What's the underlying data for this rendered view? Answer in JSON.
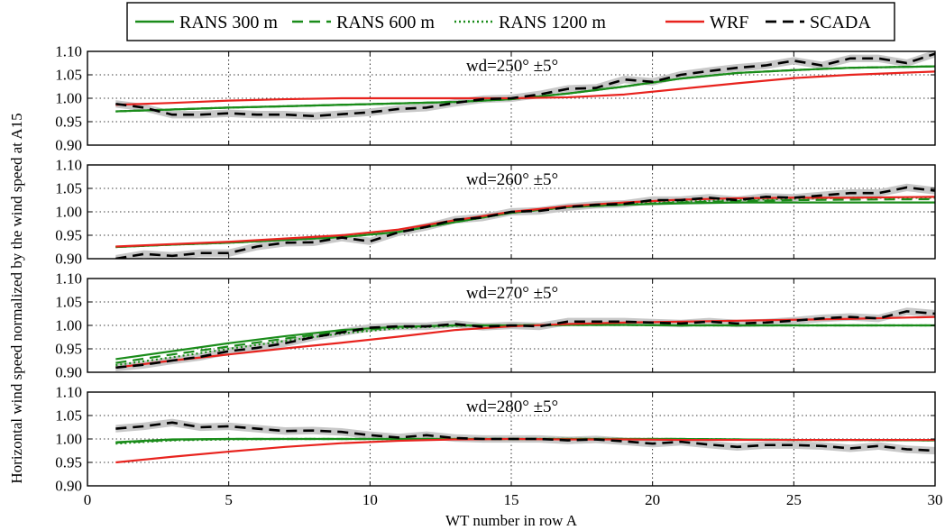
{
  "chart_data": {
    "type": "line",
    "xlabel": "WT number in row A",
    "ylabel": "Horizontal wind speed normalized by the wind speed at A15",
    "xlim": [
      0,
      30
    ],
    "ylim": [
      0.9,
      1.1
    ],
    "xticks": [
      "0",
      "5",
      "10",
      "15",
      "20",
      "25",
      "30"
    ],
    "yticks": [
      "0.90",
      "0.95",
      "1.00",
      "1.05",
      "1.10"
    ],
    "grid": true,
    "legend": {
      "placement": "top-center"
    },
    "series_styles": [
      {
        "name": "RANS 300 m",
        "color": "#1a8c1a",
        "dash": "solid"
      },
      {
        "name": "RANS 600 m",
        "color": "#1a8c1a",
        "dash": "dashed"
      },
      {
        "name": "RANS 1200 m",
        "color": "#1a8c1a",
        "dash": "dotted"
      },
      {
        "name": "WRF",
        "color": "#e8231e",
        "dash": "solid"
      },
      {
        "name": "SCADA",
        "color": "#000000",
        "dash": "dashed"
      }
    ],
    "band_color": "#c8c8c8",
    "panels": [
      {
        "title": "wd=250° ±5°",
        "series": [
          {
            "name": "RANS 300 m",
            "x": [
              1,
              3,
              5,
              7,
              9,
              11,
              13,
              15,
              17,
              19,
              21,
              23,
              25,
              27,
              30
            ],
            "values": [
              0.972,
              0.976,
              0.98,
              0.983,
              0.986,
              0.989,
              0.992,
              0.998,
              1.01,
              1.025,
              1.042,
              1.054,
              1.06,
              1.065,
              1.068
            ]
          },
          {
            "name": "RANS 600 m",
            "x": [
              1,
              3,
              5,
              7,
              9,
              11,
              13,
              15,
              17,
              19,
              21,
              23,
              25,
              27,
              30
            ],
            "values": [
              0.972,
              0.976,
              0.98,
              0.983,
              0.986,
              0.989,
              0.992,
              0.998,
              1.01,
              1.025,
              1.042,
              1.054,
              1.06,
              1.065,
              1.068
            ]
          },
          {
            "name": "RANS 1200 m",
            "x": [
              1,
              3,
              5,
              7,
              9,
              11,
              13,
              15,
              17,
              19,
              21,
              23,
              25,
              27,
              30
            ],
            "values": [
              0.972,
              0.976,
              0.98,
              0.983,
              0.986,
              0.989,
              0.992,
              0.998,
              1.01,
              1.025,
              1.042,
              1.054,
              1.06,
              1.065,
              1.068
            ]
          },
          {
            "name": "WRF",
            "x": [
              1,
              3,
              5,
              7,
              9,
              11,
              13,
              15,
              17,
              19,
              21,
              23,
              25,
              27,
              30
            ],
            "values": [
              0.986,
              0.99,
              0.995,
              0.998,
              1.0,
              1.0,
              1.0,
              1.0,
              1.002,
              1.008,
              1.02,
              1.032,
              1.043,
              1.05,
              1.057
            ]
          },
          {
            "name": "SCADA",
            "x": [
              1,
              2,
              3,
              4,
              5,
              6,
              7,
              8,
              9,
              10,
              11,
              12,
              13,
              14,
              15,
              16,
              17,
              18,
              19,
              20,
              21,
              22,
              23,
              24,
              25,
              26,
              27,
              28,
              29,
              30
            ],
            "values": [
              0.988,
              0.98,
              0.965,
              0.965,
              0.968,
              0.965,
              0.965,
              0.962,
              0.966,
              0.97,
              0.977,
              0.98,
              0.99,
              0.998,
              1.0,
              1.008,
              1.02,
              1.022,
              1.04,
              1.035,
              1.05,
              1.058,
              1.065,
              1.07,
              1.08,
              1.07,
              1.085,
              1.085,
              1.075,
              1.095
            ]
          }
        ]
      },
      {
        "title": "wd=260° ±5°",
        "series": [
          {
            "name": "RANS 300 m",
            "x": [
              1,
              3,
              5,
              7,
              9,
              11,
              13,
              15,
              17,
              19,
              21,
              23,
              25,
              27,
              30
            ],
            "values": [
              0.925,
              0.93,
              0.934,
              0.94,
              0.946,
              0.957,
              0.978,
              0.998,
              1.01,
              1.015,
              1.018,
              1.02,
              1.02,
              1.02,
              1.02
            ]
          },
          {
            "name": "RANS 600 m",
            "x": [
              1,
              3,
              5,
              7,
              9,
              11,
              13,
              15,
              17,
              19,
              21,
              23,
              25,
              27,
              30
            ],
            "values": [
              0.925,
              0.93,
              0.934,
              0.94,
              0.946,
              0.957,
              0.978,
              0.998,
              1.01,
              1.015,
              1.02,
              1.023,
              1.025,
              1.026,
              1.027
            ]
          },
          {
            "name": "RANS 1200 m",
            "x": [
              1,
              3,
              5,
              7,
              9,
              11,
              13,
              15,
              17,
              19,
              21,
              23,
              25,
              27,
              30
            ],
            "values": [
              0.925,
              0.93,
              0.934,
              0.94,
              0.946,
              0.957,
              0.978,
              0.998,
              1.01,
              1.017,
              1.022,
              1.025,
              1.028,
              1.03,
              1.03
            ]
          },
          {
            "name": "WRF",
            "x": [
              1,
              3,
              5,
              7,
              9,
              11,
              13,
              15,
              17,
              19,
              21,
              23,
              25,
              27,
              30
            ],
            "values": [
              0.926,
              0.931,
              0.936,
              0.943,
              0.95,
              0.962,
              0.982,
              1.0,
              1.012,
              1.02,
              1.026,
              1.029,
              1.03,
              1.03,
              1.032
            ]
          },
          {
            "name": "SCADA",
            "x": [
              1,
              2,
              3,
              4,
              5,
              6,
              7,
              8,
              9,
              10,
              11,
              12,
              13,
              14,
              15,
              16,
              17,
              18,
              19,
              20,
              21,
              22,
              23,
              24,
              25,
              26,
              27,
              28,
              29,
              30
            ],
            "values": [
              0.9,
              0.91,
              0.906,
              0.912,
              0.912,
              0.926,
              0.934,
              0.935,
              0.945,
              0.937,
              0.956,
              0.968,
              0.983,
              0.988,
              1.0,
              1.002,
              1.01,
              1.015,
              1.017,
              1.025,
              1.025,
              1.03,
              1.025,
              1.032,
              1.03,
              1.035,
              1.04,
              1.04,
              1.052,
              1.045
            ]
          }
        ]
      },
      {
        "title": "wd=270° ±5°",
        "series": [
          {
            "name": "RANS 300 m",
            "x": [
              1,
              3,
              5,
              7,
              9,
              11,
              13,
              15,
              17,
              19,
              21,
              23,
              25,
              27,
              30
            ],
            "values": [
              0.928,
              0.945,
              0.962,
              0.977,
              0.99,
              0.997,
              1.0,
              1.0,
              1.001,
              1.001,
              1.0,
              1.0,
              1.0,
              1.0,
              1.0
            ]
          },
          {
            "name": "RANS 600 m",
            "x": [
              1,
              3,
              5,
              7,
              9,
              11,
              13,
              15,
              17,
              19,
              21,
              23,
              25,
              27,
              30
            ],
            "values": [
              0.92,
              0.938,
              0.955,
              0.972,
              0.987,
              0.996,
              1.0,
              1.0,
              1.001,
              1.001,
              1.0,
              1.0,
              1.0,
              1.0,
              1.0
            ]
          },
          {
            "name": "RANS 1200 m",
            "x": [
              1,
              3,
              5,
              7,
              9,
              11,
              13,
              15,
              17,
              19,
              21,
              23,
              25,
              27,
              30
            ],
            "values": [
              0.915,
              0.932,
              0.95,
              0.967,
              0.983,
              0.994,
              0.999,
              1.0,
              1.001,
              1.001,
              1.0,
              1.0,
              1.0,
              1.0,
              1.0
            ]
          },
          {
            "name": "WRF",
            "x": [
              1,
              3,
              5,
              7,
              9,
              11,
              13,
              15,
              17,
              19,
              21,
              23,
              25,
              27,
              30
            ],
            "values": [
              0.91,
              0.925,
              0.938,
              0.951,
              0.963,
              0.976,
              0.99,
              0.998,
              1.003,
              1.006,
              1.008,
              1.01,
              1.012,
              1.014,
              1.018
            ]
          },
          {
            "name": "SCADA",
            "x": [
              1,
              2,
              3,
              4,
              5,
              6,
              7,
              8,
              9,
              10,
              11,
              12,
              13,
              14,
              15,
              16,
              17,
              18,
              19,
              20,
              21,
              22,
              23,
              24,
              25,
              26,
              27,
              28,
              29,
              30
            ],
            "values": [
              0.91,
              0.916,
              0.925,
              0.933,
              0.945,
              0.952,
              0.962,
              0.975,
              0.985,
              0.995,
              0.998,
              0.998,
              1.003,
              0.997,
              1.0,
              0.998,
              1.008,
              1.008,
              1.008,
              1.006,
              1.004,
              1.008,
              1.004,
              1.006,
              1.01,
              1.015,
              1.018,
              1.015,
              1.03,
              1.025
            ]
          }
        ]
      },
      {
        "title": "wd=280° ±5°",
        "series": [
          {
            "name": "RANS 300 m",
            "x": [
              1,
              3,
              5,
              7,
              9,
              11,
              13,
              15,
              17,
              19,
              21,
              23,
              25,
              27,
              30
            ],
            "values": [
              0.993,
              0.999,
              1.0,
              1.0,
              1.0,
              1.0,
              1.0,
              1.0,
              1.0,
              1.0,
              1.0,
              0.999,
              0.998,
              0.998,
              0.997
            ]
          },
          {
            "name": "RANS 600 m",
            "x": [
              1,
              3,
              5,
              7,
              9,
              11,
              13,
              15,
              17,
              19,
              21,
              23,
              25,
              27,
              30
            ],
            "values": [
              0.992,
              0.998,
              1.0,
              1.0,
              1.0,
              1.0,
              1.0,
              1.0,
              1.0,
              1.0,
              1.0,
              0.999,
              0.998,
              0.998,
              0.997
            ]
          },
          {
            "name": "RANS 1200 m",
            "x": [
              1,
              3,
              5,
              7,
              9,
              11,
              13,
              15,
              17,
              19,
              21,
              23,
              25,
              27,
              30
            ],
            "values": [
              0.99,
              0.997,
              0.999,
              1.0,
              1.0,
              1.0,
              1.0,
              1.0,
              1.0,
              1.0,
              1.0,
              0.999,
              0.998,
              0.998,
              0.997
            ]
          },
          {
            "name": "WRF",
            "x": [
              1,
              3,
              5,
              7,
              9,
              11,
              13,
              15,
              17,
              19,
              21,
              23,
              25,
              27,
              30
            ],
            "values": [
              0.95,
              0.962,
              0.973,
              0.983,
              0.991,
              0.996,
              0.999,
              1.0,
              0.999,
              0.999,
              0.998,
              0.998,
              0.998,
              0.998,
              0.998
            ]
          },
          {
            "name": "SCADA",
            "x": [
              1,
              2,
              3,
              4,
              5,
              6,
              7,
              8,
              9,
              10,
              11,
              12,
              13,
              14,
              15,
              16,
              17,
              18,
              19,
              20,
              21,
              22,
              23,
              24,
              25,
              26,
              27,
              28,
              29,
              30
            ],
            "values": [
              1.022,
              1.027,
              1.035,
              1.025,
              1.027,
              1.022,
              1.017,
              1.018,
              1.015,
              1.008,
              1.003,
              1.008,
              1.002,
              1.0,
              1.0,
              1.0,
              0.997,
              0.999,
              0.995,
              0.99,
              0.994,
              0.988,
              0.983,
              0.987,
              0.987,
              0.985,
              0.98,
              0.985,
              0.978,
              0.975
            ]
          }
        ]
      }
    ]
  }
}
